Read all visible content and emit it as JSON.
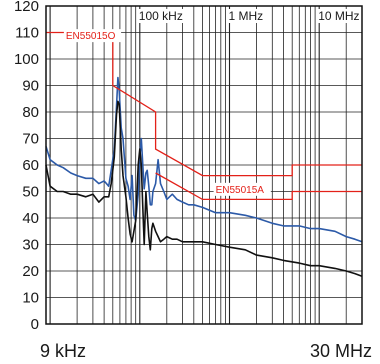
{
  "chart_data": {
    "type": "line",
    "title": "",
    "xlabel": "",
    "ylabel": "",
    "x_scale": "log",
    "x_unit": "Hz",
    "xlim": [
      9000,
      30000000
    ],
    "ylim": [
      0,
      120
    ],
    "y_ticks": [
      "0",
      "10",
      "20",
      "30",
      "40",
      "50",
      "60",
      "70",
      "80",
      "90",
      "100",
      "110",
      "120"
    ],
    "x_end_labels": [
      "9 kHz",
      "30 MHz"
    ],
    "decade_labels": [
      {
        "x": 100000,
        "label": "100 kHz"
      },
      {
        "x": 1000000,
        "label": "1 MHz"
      },
      {
        "x": 10000000,
        "label": "10 MHz"
      }
    ],
    "grid": true,
    "colors": {
      "limit": "#e32119",
      "series_a": "#2c5aa8",
      "series_b": "#111111"
    },
    "limit_lines": [
      {
        "label": "EN55015O",
        "points": [
          [
            9000,
            110
          ],
          [
            50000,
            110
          ],
          [
            50000,
            90
          ],
          [
            150000,
            80
          ],
          [
            150000,
            66
          ],
          [
            500000,
            56
          ],
          [
            5000000,
            56
          ],
          [
            5000000,
            60
          ],
          [
            30000000,
            60
          ]
        ]
      },
      {
        "label": "EN55015A",
        "points": [
          [
            150000,
            57
          ],
          [
            500000,
            47
          ],
          [
            5000000,
            47
          ],
          [
            5000000,
            50
          ],
          [
            30000000,
            50
          ]
        ]
      }
    ],
    "series": [
      {
        "values": [
          [
            9000,
            67
          ],
          [
            10000,
            62
          ],
          [
            12000,
            60
          ],
          [
            14000,
            59
          ],
          [
            17000,
            57
          ],
          [
            20000,
            56
          ],
          [
            25000,
            55
          ],
          [
            30000,
            55
          ],
          [
            35000,
            53
          ],
          [
            40000,
            54
          ],
          [
            45000,
            52
          ],
          [
            48000,
            58
          ],
          [
            52000,
            66
          ],
          [
            55000,
            82
          ],
          [
            57000,
            93
          ],
          [
            59000,
            88
          ],
          [
            62000,
            74
          ],
          [
            65000,
            70
          ],
          [
            70000,
            55
          ],
          [
            74000,
            52
          ],
          [
            78000,
            47
          ],
          [
            82000,
            56
          ],
          [
            86000,
            41
          ],
          [
            90000,
            39
          ],
          [
            96000,
            49
          ],
          [
            100000,
            63
          ],
          [
            104000,
            70
          ],
          [
            108000,
            60
          ],
          [
            112000,
            51
          ],
          [
            117000,
            57
          ],
          [
            121000,
            58
          ],
          [
            126000,
            52
          ],
          [
            131000,
            45
          ],
          [
            136000,
            45
          ],
          [
            140000,
            50
          ],
          [
            150000,
            53
          ],
          [
            160000,
            62
          ],
          [
            170000,
            53
          ],
          [
            185000,
            50
          ],
          [
            200000,
            47
          ],
          [
            230000,
            49
          ],
          [
            260000,
            47
          ],
          [
            300000,
            46
          ],
          [
            350000,
            45
          ],
          [
            400000,
            45
          ],
          [
            500000,
            44
          ],
          [
            700000,
            42
          ],
          [
            1000000,
            42
          ],
          [
            1500000,
            41
          ],
          [
            2000000,
            40
          ],
          [
            3000000,
            38
          ],
          [
            4000000,
            37
          ],
          [
            6000000,
            37
          ],
          [
            8000000,
            36
          ],
          [
            10000000,
            36
          ],
          [
            15000000,
            35
          ],
          [
            20000000,
            33
          ],
          [
            25000000,
            32
          ],
          [
            30000000,
            31
          ]
        ]
      },
      {
        "values": [
          [
            9000,
            60
          ],
          [
            10000,
            52
          ],
          [
            12000,
            50
          ],
          [
            14000,
            50
          ],
          [
            17000,
            49
          ],
          [
            20000,
            49
          ],
          [
            25000,
            48
          ],
          [
            30000,
            49
          ],
          [
            35000,
            46
          ],
          [
            40000,
            48
          ],
          [
            45000,
            48
          ],
          [
            48000,
            53
          ],
          [
            52000,
            63
          ],
          [
            55000,
            79
          ],
          [
            57000,
            84
          ],
          [
            59000,
            83
          ],
          [
            62000,
            66
          ],
          [
            65000,
            56
          ],
          [
            70000,
            48
          ],
          [
            74000,
            40
          ],
          [
            78000,
            34
          ],
          [
            82000,
            31
          ],
          [
            86000,
            35
          ],
          [
            90000,
            39
          ],
          [
            96000,
            60
          ],
          [
            100000,
            66
          ],
          [
            104000,
            60
          ],
          [
            108000,
            44
          ],
          [
            112000,
            30
          ],
          [
            117000,
            50
          ],
          [
            121000,
            42
          ],
          [
            126000,
            33
          ],
          [
            131000,
            28
          ],
          [
            136000,
            36
          ],
          [
            140000,
            38
          ],
          [
            150000,
            35
          ],
          [
            160000,
            33
          ],
          [
            170000,
            31
          ],
          [
            185000,
            32
          ],
          [
            200000,
            33
          ],
          [
            230000,
            32
          ],
          [
            260000,
            32
          ],
          [
            300000,
            31
          ],
          [
            350000,
            31
          ],
          [
            400000,
            31
          ],
          [
            500000,
            31
          ],
          [
            700000,
            30
          ],
          [
            1000000,
            29
          ],
          [
            1500000,
            28
          ],
          [
            2000000,
            26
          ],
          [
            3000000,
            25
          ],
          [
            4000000,
            24
          ],
          [
            6000000,
            23
          ],
          [
            8000000,
            22
          ],
          [
            10000000,
            22
          ],
          [
            15000000,
            21
          ],
          [
            20000000,
            20
          ],
          [
            25000000,
            19
          ],
          [
            30000000,
            18
          ]
        ]
      }
    ]
  }
}
